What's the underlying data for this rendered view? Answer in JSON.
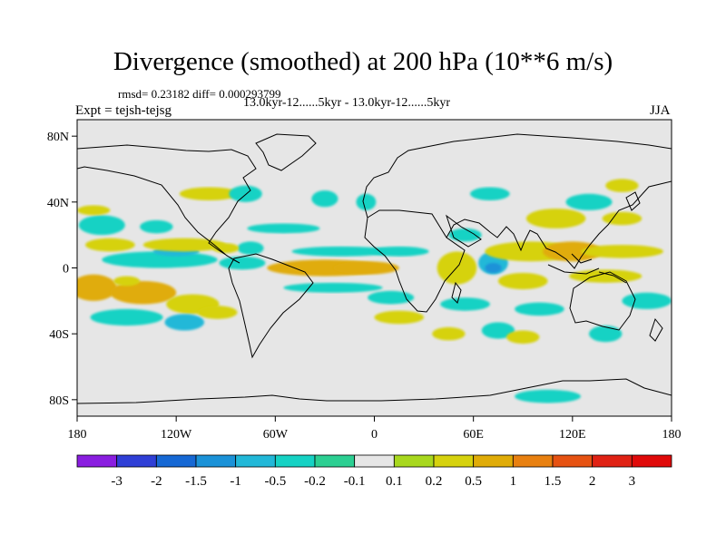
{
  "chart_data": {
    "type": "heatmap",
    "title": "Divergence (smoothed) at 200 hPa (10**6 m/s)",
    "stats_text": "rmsd= 0.23182 diff= 0.000293799",
    "range_text": "13.0kyr-12......5kyr - 13.0kyr-12......5kyr",
    "expt_text": "Expt = tejsh-tejsg",
    "season": "JJA",
    "xlim": [
      -180,
      180
    ],
    "ylim": [
      -90,
      90
    ],
    "x_ticks": [
      {
        "value": -180,
        "label": "180"
      },
      {
        "value": -120,
        "label": "120W"
      },
      {
        "value": -60,
        "label": "60W"
      },
      {
        "value": 0,
        "label": "0"
      },
      {
        "value": 60,
        "label": "60E"
      },
      {
        "value": 120,
        "label": "120E"
      },
      {
        "value": 180,
        "label": "180"
      }
    ],
    "y_ticks": [
      {
        "value": 80,
        "label": "80N"
      },
      {
        "value": 40,
        "label": "40N"
      },
      {
        "value": 0,
        "label": "0"
      },
      {
        "value": -40,
        "label": "40S"
      },
      {
        "value": -80,
        "label": "80S"
      }
    ],
    "colorbar": {
      "labels": [
        "-3",
        "-2",
        "-1.5",
        "-1",
        "-0.5",
        "-0.2",
        "-0.1",
        "0.1",
        "0.2",
        "0.5",
        "1",
        "1.5",
        "2",
        "3"
      ],
      "colors": [
        "#8a1ee0",
        "#2f3fd6",
        "#1668d4",
        "#1b92d8",
        "#22b8d8",
        "#16d2c4",
        "#2ccf92",
        "#e6e6e6",
        "#a8d81e",
        "#d6d20e",
        "#e0ac08",
        "#e88010",
        "#e65212",
        "#e02214",
        "#e00a0a"
      ]
    },
    "anomalies": [
      {
        "lon": -170,
        "lat": -12,
        "rlon": 14,
        "rlat": 8,
        "level": 0.8
      },
      {
        "lon": -140,
        "lat": -15,
        "rlon": 20,
        "rlat": 7,
        "level": 0.55
      },
      {
        "lon": -110,
        "lat": -22,
        "rlon": 16,
        "rlat": 6,
        "level": 0.45
      },
      {
        "lon": -95,
        "lat": -27,
        "rlon": 12,
        "rlat": 4,
        "level": 0.3
      },
      {
        "lon": -150,
        "lat": -30,
        "rlon": 22,
        "rlat": 5,
        "level": -0.35
      },
      {
        "lon": -115,
        "lat": -33,
        "rlon": 12,
        "rlat": 5,
        "level": -0.8
      },
      {
        "lon": -150,
        "lat": -8,
        "rlon": 8,
        "rlat": 3,
        "level": 0.3
      },
      {
        "lon": -130,
        "lat": 5,
        "rlon": 35,
        "rlat": 5,
        "level": -0.45
      },
      {
        "lon": -120,
        "lat": 10,
        "rlon": 14,
        "rlat": 3,
        "level": -0.9
      },
      {
        "lon": -80,
        "lat": 3,
        "rlon": 14,
        "rlat": 4,
        "level": -0.35
      },
      {
        "lon": -115,
        "lat": 14,
        "rlon": 25,
        "rlat": 4,
        "level": 0.35
      },
      {
        "lon": -160,
        "lat": 14,
        "rlon": 15,
        "rlat": 4,
        "level": 0.4
      },
      {
        "lon": -165,
        "lat": 26,
        "rlon": 14,
        "rlat": 6,
        "level": -0.4
      },
      {
        "lon": -132,
        "lat": 25,
        "rlon": 10,
        "rlat": 4,
        "level": -0.3
      },
      {
        "lon": -170,
        "lat": 35,
        "rlon": 10,
        "rlat": 3,
        "level": 0.3
      },
      {
        "lon": -100,
        "lat": 45,
        "rlon": 18,
        "rlat": 4,
        "level": 0.4
      },
      {
        "lon": -78,
        "lat": 45,
        "rlon": 10,
        "rlat": 5,
        "level": -0.3
      },
      {
        "lon": -30,
        "lat": 42,
        "rlon": 8,
        "rlat": 5,
        "level": -0.3
      },
      {
        "lon": -5,
        "lat": 40,
        "rlon": 6,
        "rlat": 5,
        "level": -0.25
      },
      {
        "lon": -55,
        "lat": 24,
        "rlon": 22,
        "rlat": 3,
        "level": -0.4
      },
      {
        "lon": -75,
        "lat": 12,
        "rlon": 8,
        "rlat": 4,
        "level": -0.35
      },
      {
        "lon": -90,
        "lat": 12,
        "rlon": 8,
        "rlat": 3,
        "level": 0.3
      },
      {
        "lon": -30,
        "lat": 0,
        "rlon": 35,
        "rlat": 5,
        "level": 0.55
      },
      {
        "lon": -5,
        "lat": 0,
        "rlon": 20,
        "rlat": 4,
        "level": 0.75
      },
      {
        "lon": -20,
        "lat": 10,
        "rlon": 30,
        "rlat": 3,
        "level": -0.3
      },
      {
        "lon": -25,
        "lat": -12,
        "rlon": 30,
        "rlat": 3,
        "level": -0.35
      },
      {
        "lon": 10,
        "lat": -18,
        "rlon": 14,
        "rlat": 4,
        "level": -0.3
      },
      {
        "lon": 15,
        "lat": 10,
        "rlon": 18,
        "rlat": 3,
        "level": -0.3
      },
      {
        "lon": 15,
        "lat": -30,
        "rlon": 15,
        "rlat": 4,
        "level": 0.3
      },
      {
        "lon": 50,
        "lat": 0,
        "rlon": 12,
        "rlat": 10,
        "level": 0.5
      },
      {
        "lon": 72,
        "lat": 3,
        "rlon": 9,
        "rlat": 7,
        "level": -0.6
      },
      {
        "lon": 72,
        "lat": 0,
        "rlon": 5,
        "rlat": 3,
        "level": -1.3
      },
      {
        "lon": 90,
        "lat": -8,
        "rlon": 15,
        "rlat": 5,
        "level": 0.45
      },
      {
        "lon": 95,
        "lat": 10,
        "rlon": 28,
        "rlat": 6,
        "level": 0.4
      },
      {
        "lon": 120,
        "lat": 10,
        "rlon": 18,
        "rlat": 6,
        "level": 0.7
      },
      {
        "lon": 150,
        "lat": 10,
        "rlon": 25,
        "rlat": 4,
        "level": 0.35
      },
      {
        "lon": 140,
        "lat": -5,
        "rlon": 22,
        "rlat": 4,
        "level": 0.5
      },
      {
        "lon": 110,
        "lat": 30,
        "rlon": 18,
        "rlat": 6,
        "level": 0.35
      },
      {
        "lon": 130,
        "lat": 40,
        "rlon": 14,
        "rlat": 5,
        "level": -0.3
      },
      {
        "lon": 150,
        "lat": 30,
        "rlon": 12,
        "rlat": 4,
        "level": 0.35
      },
      {
        "lon": 70,
        "lat": 45,
        "rlon": 12,
        "rlat": 4,
        "level": -0.3
      },
      {
        "lon": 55,
        "lat": -22,
        "rlon": 15,
        "rlat": 4,
        "level": -0.3
      },
      {
        "lon": 100,
        "lat": -25,
        "rlon": 15,
        "rlat": 4,
        "level": -0.35
      },
      {
        "lon": 165,
        "lat": -20,
        "rlon": 15,
        "rlat": 5,
        "level": -0.35
      },
      {
        "lon": 140,
        "lat": -40,
        "rlon": 10,
        "rlat": 5,
        "level": -0.4
      },
      {
        "lon": 75,
        "lat": -38,
        "rlon": 10,
        "rlat": 5,
        "level": -0.35
      },
      {
        "lon": 90,
        "lat": -42,
        "rlon": 10,
        "rlat": 4,
        "level": 0.35
      },
      {
        "lon": 45,
        "lat": -40,
        "rlon": 10,
        "rlat": 4,
        "level": 0.3
      },
      {
        "lon": 55,
        "lat": 20,
        "rlon": 10,
        "rlat": 4,
        "level": -0.3
      },
      {
        "lon": 150,
        "lat": 50,
        "rlon": 10,
        "rlat": 4,
        "level": 0.3
      },
      {
        "lon": 105,
        "lat": -78,
        "rlon": 20,
        "rlat": 4,
        "level": -0.3
      }
    ]
  }
}
